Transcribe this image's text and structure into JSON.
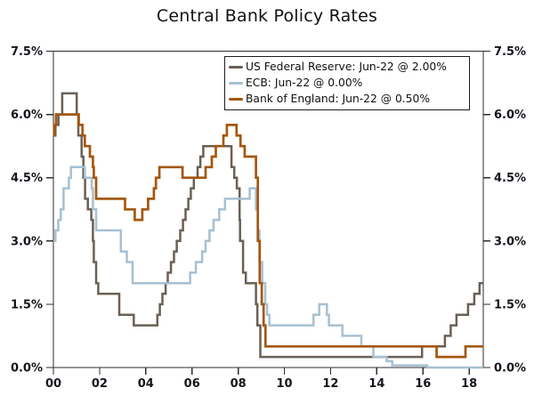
{
  "figure": {
    "title": "Central Bank Policy Rates"
  },
  "colors": {
    "background": "#ffffff",
    "axis": "#2d2d2d",
    "tick_text": "#15161d",
    "title_text": "#111111"
  },
  "chart_data": {
    "type": "line",
    "subtype": "step-after",
    "title": "Central Bank Policy Rates",
    "grid": false,
    "legend_position": "top-inside",
    "x_axis": {
      "label": "",
      "tick_labels": [
        "00",
        "02",
        "04",
        "06",
        "08",
        "10",
        "12",
        "14",
        "16",
        "18"
      ],
      "tick_years": [
        2000,
        2002,
        2004,
        2006,
        2008,
        2010,
        2012,
        2014,
        2016,
        2018
      ],
      "range": [
        2000,
        2018.61
      ]
    },
    "y_axis": {
      "label": "",
      "unit": "%",
      "tick_labels": [
        "0.0%",
        "1.5%",
        "3.0%",
        "4.5%",
        "6.0%",
        "7.5%"
      ],
      "tick_values": [
        0,
        1.5,
        3,
        4.5,
        6,
        7.5
      ],
      "range": [
        0,
        7.5
      ],
      "shown_on": "both"
    },
    "series": [
      {
        "name": "US Federal Reserve",
        "legend_label": "US Federal Reserve: Jun-22 @ 2.00%",
        "latest_value": "2.00%",
        "color": "#6a6054",
        "width": 2.5,
        "points": [
          [
            2000.0,
            5.5
          ],
          [
            2000.09,
            5.75
          ],
          [
            2000.22,
            6.0
          ],
          [
            2000.38,
            6.5
          ],
          [
            2001.01,
            6.0
          ],
          [
            2001.08,
            5.5
          ],
          [
            2001.22,
            5.0
          ],
          [
            2001.3,
            4.5
          ],
          [
            2001.37,
            4.0
          ],
          [
            2001.49,
            3.75
          ],
          [
            2001.64,
            3.5
          ],
          [
            2001.71,
            3.0
          ],
          [
            2001.75,
            2.5
          ],
          [
            2001.85,
            2.0
          ],
          [
            2001.94,
            1.75
          ],
          [
            2002.85,
            1.25
          ],
          [
            2003.48,
            1.0
          ],
          [
            2004.5,
            1.25
          ],
          [
            2004.61,
            1.5
          ],
          [
            2004.72,
            1.75
          ],
          [
            2004.86,
            2.0
          ],
          [
            2004.95,
            2.25
          ],
          [
            2005.09,
            2.5
          ],
          [
            2005.22,
            2.75
          ],
          [
            2005.34,
            3.0
          ],
          [
            2005.49,
            3.25
          ],
          [
            2005.61,
            3.5
          ],
          [
            2005.72,
            3.75
          ],
          [
            2005.84,
            4.0
          ],
          [
            2005.95,
            4.25
          ],
          [
            2006.08,
            4.5
          ],
          [
            2006.24,
            4.75
          ],
          [
            2006.36,
            5.0
          ],
          [
            2006.49,
            5.25
          ],
          [
            2007.71,
            4.75
          ],
          [
            2007.83,
            4.5
          ],
          [
            2007.94,
            4.25
          ],
          [
            2008.06,
            3.5
          ],
          [
            2008.08,
            3.0
          ],
          [
            2008.21,
            2.25
          ],
          [
            2008.33,
            2.0
          ],
          [
            2008.77,
            1.5
          ],
          [
            2008.83,
            1.0
          ],
          [
            2008.96,
            0.25
          ],
          [
            2015.96,
            0.5
          ],
          [
            2016.95,
            0.75
          ],
          [
            2017.2,
            1.0
          ],
          [
            2017.45,
            1.25
          ],
          [
            2017.95,
            1.5
          ],
          [
            2018.22,
            1.75
          ],
          [
            2018.45,
            2.0
          ]
        ]
      },
      {
        "name": "ECB",
        "legend_label": "ECB: Jun-22 @ 0.00%",
        "latest_value": "0.00%",
        "color": "#a6c0d2",
        "width": 2.5,
        "points": [
          [
            2000.0,
            3.0
          ],
          [
            2000.09,
            3.25
          ],
          [
            2000.21,
            3.5
          ],
          [
            2000.32,
            3.75
          ],
          [
            2000.44,
            4.25
          ],
          [
            2000.67,
            4.5
          ],
          [
            2000.76,
            4.75
          ],
          [
            2001.36,
            4.5
          ],
          [
            2001.66,
            4.25
          ],
          [
            2001.71,
            3.75
          ],
          [
            2001.85,
            3.25
          ],
          [
            2002.92,
            2.75
          ],
          [
            2003.18,
            2.5
          ],
          [
            2003.43,
            2.0
          ],
          [
            2005.92,
            2.25
          ],
          [
            2006.17,
            2.5
          ],
          [
            2006.44,
            2.75
          ],
          [
            2006.59,
            3.0
          ],
          [
            2006.76,
            3.25
          ],
          [
            2006.93,
            3.5
          ],
          [
            2007.18,
            3.75
          ],
          [
            2007.43,
            4.0
          ],
          [
            2008.5,
            4.25
          ],
          [
            2008.77,
            3.75
          ],
          [
            2008.85,
            3.25
          ],
          [
            2008.92,
            2.5
          ],
          [
            2009.04,
            2.0
          ],
          [
            2009.17,
            1.5
          ],
          [
            2009.25,
            1.25
          ],
          [
            2009.35,
            1.0
          ],
          [
            2011.26,
            1.25
          ],
          [
            2011.51,
            1.5
          ],
          [
            2011.84,
            1.25
          ],
          [
            2011.93,
            1.0
          ],
          [
            2012.51,
            0.75
          ],
          [
            2013.33,
            0.5
          ],
          [
            2013.85,
            0.25
          ],
          [
            2014.43,
            0.15
          ],
          [
            2014.67,
            0.05
          ],
          [
            2016.19,
            0.0
          ]
        ]
      },
      {
        "name": "Bank of England",
        "legend_label": "Bank of England: Jun-22 @ 0.50%",
        "latest_value": "0.50%",
        "color": "#a4570f",
        "width": 2.7,
        "points": [
          [
            2000.0,
            5.5
          ],
          [
            2000.03,
            5.75
          ],
          [
            2000.11,
            6.0
          ],
          [
            2001.1,
            5.75
          ],
          [
            2001.26,
            5.5
          ],
          [
            2001.36,
            5.25
          ],
          [
            2001.58,
            5.0
          ],
          [
            2001.71,
            4.75
          ],
          [
            2001.75,
            4.5
          ],
          [
            2001.85,
            4.0
          ],
          [
            2003.1,
            3.75
          ],
          [
            2003.52,
            3.5
          ],
          [
            2003.85,
            3.75
          ],
          [
            2004.1,
            4.0
          ],
          [
            2004.35,
            4.25
          ],
          [
            2004.44,
            4.5
          ],
          [
            2004.59,
            4.75
          ],
          [
            2005.59,
            4.5
          ],
          [
            2006.59,
            4.75
          ],
          [
            2006.86,
            5.0
          ],
          [
            2007.03,
            5.25
          ],
          [
            2007.36,
            5.5
          ],
          [
            2007.51,
            5.75
          ],
          [
            2007.93,
            5.5
          ],
          [
            2008.1,
            5.25
          ],
          [
            2008.28,
            5.0
          ],
          [
            2008.77,
            4.5
          ],
          [
            2008.85,
            3.0
          ],
          [
            2008.93,
            2.0
          ],
          [
            2009.02,
            1.5
          ],
          [
            2009.1,
            1.0
          ],
          [
            2009.18,
            0.5
          ],
          [
            2016.59,
            0.25
          ],
          [
            2017.84,
            0.5
          ]
        ]
      }
    ]
  }
}
